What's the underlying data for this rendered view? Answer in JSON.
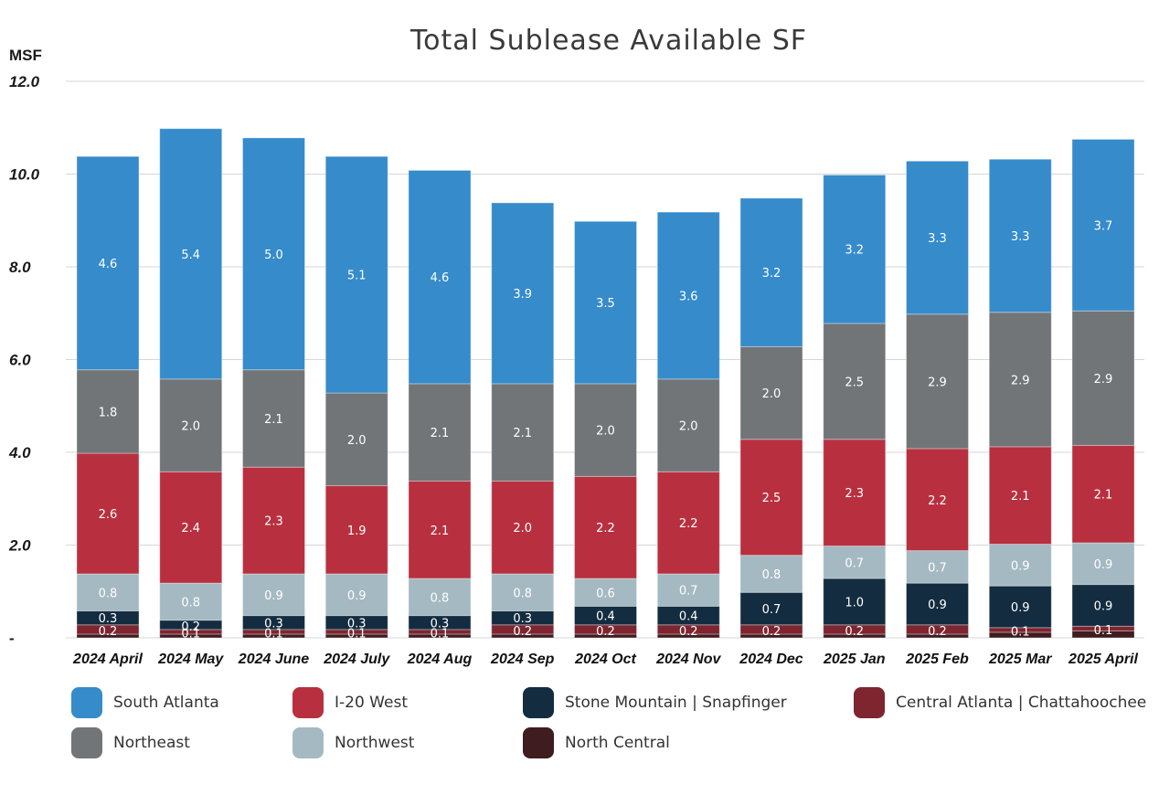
{
  "chart_data": {
    "type": "bar",
    "stacked": true,
    "title": "Total Sublease Available SF",
    "ylabel": "MSF",
    "xlabel": "",
    "ylim": [
      0,
      12
    ],
    "yticks": [
      0,
      2,
      4,
      6,
      8,
      10,
      12
    ],
    "ytick_labels": [
      "-",
      "2.0",
      "4.0",
      "6.0",
      "8.0",
      "10.0",
      "12.0"
    ],
    "grid": true,
    "legend_position": "bottom",
    "categories": [
      "2024 April",
      "2024 May",
      "2024 June",
      "2024 July",
      "2024 Aug",
      "2024 Sep",
      "2024 Oct",
      "2024 Nov",
      "2024 Dec",
      "2025 Jan",
      "2025 Feb",
      "2025 Mar",
      "2025 April"
    ],
    "series": [
      {
        "name": "North Central",
        "color": "#3f1c20",
        "labeled": false,
        "values": [
          0.08,
          0.08,
          0.08,
          0.08,
          0.08,
          0.08,
          0.08,
          0.08,
          0.08,
          0.08,
          0.08,
          0.12,
          0.15
        ]
      },
      {
        "name": "Central Atlanta | Chattahoochee",
        "color": "#7e2530",
        "labeled": true,
        "values": [
          0.2,
          0.1,
          0.1,
          0.1,
          0.1,
          0.2,
          0.2,
          0.2,
          0.2,
          0.2,
          0.2,
          0.1,
          0.1
        ]
      },
      {
        "name": "Stone Mountain | Snapfinger",
        "color": "#132c40",
        "labeled": true,
        "values": [
          0.3,
          0.2,
          0.3,
          0.3,
          0.3,
          0.3,
          0.4,
          0.4,
          0.7,
          1.0,
          0.9,
          0.9,
          0.9
        ]
      },
      {
        "name": "Northwest",
        "color": "#a5b9c2",
        "labeled": true,
        "values": [
          0.8,
          0.8,
          0.9,
          0.9,
          0.8,
          0.8,
          0.6,
          0.7,
          0.8,
          0.7,
          0.7,
          0.9,
          0.9
        ]
      },
      {
        "name": "I-20 West",
        "color": "#b8303f",
        "labeled": true,
        "values": [
          2.6,
          2.4,
          2.3,
          1.9,
          2.1,
          2.0,
          2.2,
          2.2,
          2.5,
          2.3,
          2.2,
          2.1,
          2.1
        ]
      },
      {
        "name": "Northeast",
        "color": "#717578",
        "labeled": true,
        "values": [
          1.8,
          2.0,
          2.1,
          2.0,
          2.1,
          2.1,
          2.0,
          2.0,
          2.0,
          2.5,
          2.9,
          2.9,
          2.9
        ]
      },
      {
        "name": "South Atlanta",
        "color": "#368bcb",
        "labeled": true,
        "values": [
          4.6,
          5.4,
          5.0,
          5.1,
          4.6,
          3.9,
          3.5,
          3.6,
          3.2,
          3.2,
          3.3,
          3.3,
          3.7
        ]
      }
    ],
    "legend": [
      {
        "name": "South Atlanta",
        "color": "#368bcb"
      },
      {
        "name": "I-20 West",
        "color": "#b8303f"
      },
      {
        "name": "Stone Mountain | Snapfinger",
        "color": "#132c40"
      },
      {
        "name": "Central Atlanta | Chattahoochee",
        "color": "#7e2530"
      },
      {
        "name": "Northeast",
        "color": "#717578"
      },
      {
        "name": "Northwest",
        "color": "#a5b9c2"
      },
      {
        "name": "North Central",
        "color": "#3f1c20"
      }
    ]
  }
}
